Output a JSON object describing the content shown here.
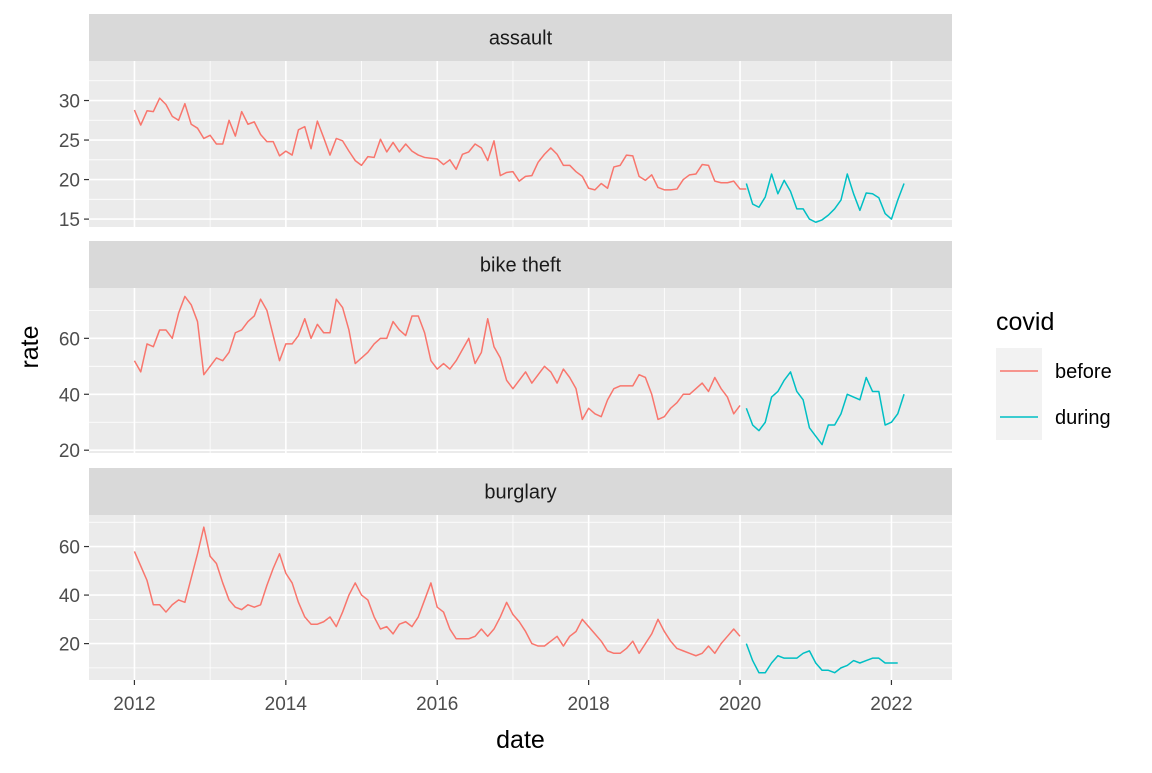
{
  "chart_data": {
    "type": "line",
    "xlabel": "date",
    "ylabel": "rate",
    "x_ticks": [
      "2012",
      "2014",
      "2016",
      "2018",
      "2020",
      "2022"
    ],
    "x_range": [
      2011.4,
      2022.8
    ],
    "legend": {
      "title": "covid",
      "position": "right",
      "entries": [
        {
          "name": "before",
          "color": "#F8766D"
        },
        {
          "name": "during",
          "color": "#00BFC4"
        }
      ]
    },
    "grid": true,
    "panel_background": "#EBEBEB",
    "strip_background": "#D9D9D9",
    "facets": [
      {
        "label": "assault",
        "ylim": [
          14,
          35
        ],
        "y_ticks": [
          15,
          20,
          25,
          30
        ],
        "series": [
          {
            "name": "before",
            "x_start": 2012.0,
            "step_months": 1,
            "values": [
              28.8,
              26.9,
              28.7,
              28.6,
              30.3,
              29.5,
              28.0,
              27.5,
              29.6,
              27.0,
              26.5,
              25.2,
              25.6,
              24.5,
              24.5,
              27.5,
              25.5,
              28.6,
              27.0,
              27.3,
              25.7,
              24.8,
              24.8,
              23.0,
              23.6,
              23.1,
              26.3,
              26.7,
              23.9,
              27.4,
              25.3,
              23.1,
              25.2,
              24.9,
              23.6,
              22.4,
              21.8,
              22.9,
              22.8,
              25.1,
              23.5,
              24.7,
              23.5,
              24.5,
              23.6,
              23.1,
              22.8,
              22.7,
              22.6,
              21.9,
              22.5,
              21.3,
              23.2,
              23.5,
              24.5,
              24.0,
              22.4,
              24.9,
              20.5,
              20.9,
              21.0,
              19.8,
              20.4,
              20.5,
              22.2,
              23.2,
              24.0,
              23.2,
              21.8,
              21.8,
              21.0,
              20.4,
              18.9,
              18.7,
              19.5,
              18.9,
              21.6,
              21.8,
              23.1,
              23.0,
              20.4,
              19.9,
              20.6,
              19.0,
              18.7,
              18.7,
              18.8,
              20.0,
              20.6,
              20.7,
              21.9,
              21.8,
              19.8,
              19.6,
              19.6,
              19.8,
              18.8,
              18.8
            ]
          },
          {
            "name": "during",
            "x_start": 2020.0833,
            "step_months": 1,
            "values": [
              19.5,
              16.9,
              16.5,
              17.8,
              20.7,
              18.2,
              19.9,
              18.5,
              16.3,
              16.3,
              15.0,
              14.6,
              14.9,
              15.5,
              16.3,
              17.4,
              20.7,
              18.2,
              16.1,
              18.3,
              18.2,
              17.7,
              15.7,
              15.0,
              17.4,
              19.5
            ]
          }
        ]
      },
      {
        "label": "bike theft",
        "ylim": [
          19,
          78
        ],
        "y_ticks": [
          20,
          40,
          60
        ],
        "series": [
          {
            "name": "before",
            "x_start": 2012.0,
            "step_months": 1,
            "values": [
              52,
              48,
              58,
              57,
              63,
              63,
              60,
              69,
              75,
              72,
              66,
              47,
              50,
              53,
              52,
              55,
              62,
              63,
              66,
              68,
              74,
              70,
              61,
              52,
              58,
              58,
              61,
              67,
              60,
              65,
              62,
              62,
              74,
              71,
              63,
              51,
              53,
              55,
              58,
              60,
              60,
              66,
              63,
              61,
              68,
              68,
              62,
              52,
              49,
              51,
              49,
              52,
              56,
              60,
              51,
              55,
              67,
              57,
              53,
              45,
              42,
              45,
              48,
              44,
              47,
              50,
              48,
              44,
              49,
              46,
              42,
              31,
              35,
              33,
              32,
              38,
              42,
              43,
              43,
              43,
              47,
              46,
              40,
              31,
              32,
              35,
              37,
              40,
              40,
              42,
              44,
              41,
              46,
              42,
              39,
              33,
              36
            ]
          },
          {
            "name": "during",
            "x_start": 2020.0833,
            "step_months": 1,
            "values": [
              35,
              29,
              27,
              30,
              39,
              41,
              45,
              48,
              41,
              38,
              28,
              25,
              22,
              29,
              29,
              33,
              40,
              39,
              38,
              46,
              41,
              41,
              29,
              30,
              33,
              40
            ]
          }
        ]
      },
      {
        "label": "burglary",
        "ylim": [
          5,
          73
        ],
        "y_ticks": [
          20,
          40,
          60
        ],
        "series": [
          {
            "name": "before",
            "x_start": 2012.0,
            "step_months": 1,
            "values": [
              58,
              52,
              46,
              36,
              36,
              33,
              36,
              38,
              37,
              47,
              57,
              68,
              56,
              53,
              45,
              38,
              35,
              34,
              36,
              35,
              36,
              44,
              51,
              57,
              49,
              45,
              37,
              31,
              28,
              28,
              29,
              31,
              27,
              33,
              40,
              45,
              40,
              38,
              31,
              26,
              27,
              24,
              28,
              29,
              27,
              31,
              38,
              45,
              35,
              33,
              26,
              22,
              22,
              22,
              23,
              26,
              23,
              26,
              31,
              37,
              32,
              29,
              25,
              20,
              19,
              19,
              21,
              23,
              19,
              23,
              25,
              30,
              27,
              24,
              21,
              17,
              16,
              16,
              18,
              21,
              16,
              20,
              24,
              30,
              25,
              21,
              18,
              17,
              16,
              15,
              16,
              19,
              16,
              20,
              23,
              26,
              23
            ]
          },
          {
            "name": "during",
            "x_start": 2020.0833,
            "step_months": 1,
            "values": [
              20,
              13,
              8,
              8,
              12,
              15,
              14,
              14,
              14,
              16,
              17,
              12,
              9,
              9,
              8,
              10,
              11,
              13,
              12,
              13,
              14,
              14,
              12,
              12,
              12
            ]
          }
        ]
      }
    ]
  }
}
